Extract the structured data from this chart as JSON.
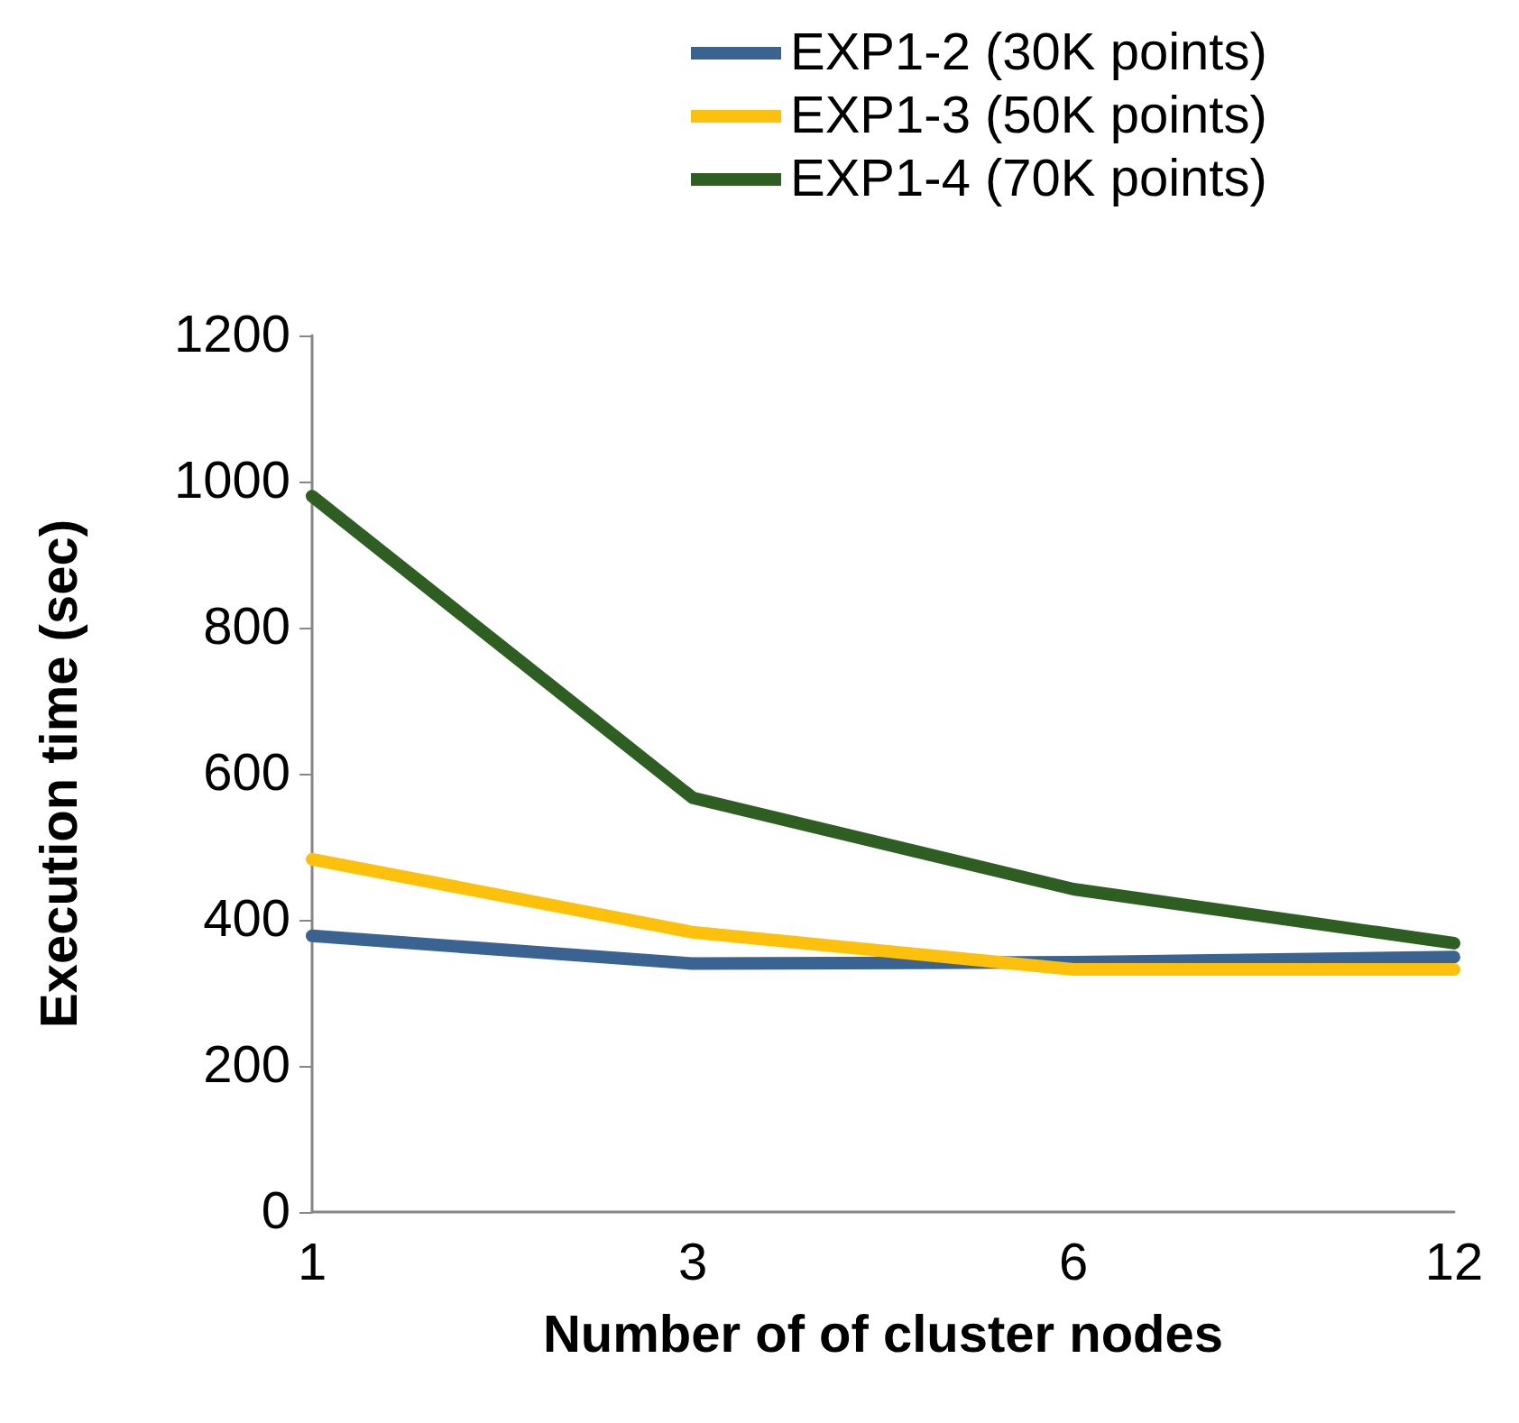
{
  "chart_data": {
    "type": "line",
    "xlabel": "Number of of cluster nodes",
    "ylabel": "Execution time (sec)",
    "categories": [
      "1",
      "3",
      "6",
      "12"
    ],
    "series": [
      {
        "name": "EXP1-2 (30K points)",
        "color": "#3b6392",
        "values": [
          378,
          340,
          342,
          349
        ]
      },
      {
        "name": "EXP1-3 (50K points)",
        "color": "#fdc10b",
        "values": [
          483,
          383,
          332,
          332
        ]
      },
      {
        "name": "EXP1-4 (70K points)",
        "color": "#2e5e22",
        "values": [
          980,
          567,
          442,
          368
        ]
      }
    ],
    "ylim": [
      0,
      1200
    ],
    "yticks": [
      0,
      200,
      400,
      600,
      800,
      1000,
      1200
    ],
    "grid": false,
    "legend": "top",
    "marker": "none",
    "line_style": "solid"
  }
}
